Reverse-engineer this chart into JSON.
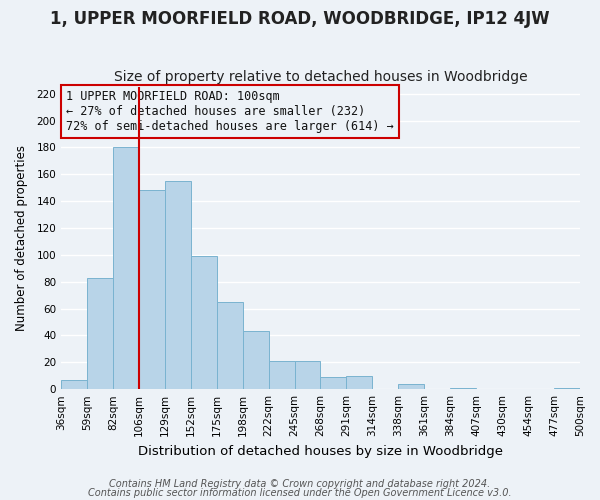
{
  "title": "1, UPPER MOORFIELD ROAD, WOODBRIDGE, IP12 4JW",
  "subtitle": "Size of property relative to detached houses in Woodbridge",
  "xlabel": "Distribution of detached houses by size in Woodbridge",
  "ylabel": "Number of detached properties",
  "bin_labels": [
    "36sqm",
    "59sqm",
    "82sqm",
    "106sqm",
    "129sqm",
    "152sqm",
    "175sqm",
    "198sqm",
    "222sqm",
    "245sqm",
    "268sqm",
    "291sqm",
    "314sqm",
    "338sqm",
    "361sqm",
    "384sqm",
    "407sqm",
    "430sqm",
    "454sqm",
    "477sqm",
    "500sqm"
  ],
  "bar_values": [
    7,
    83,
    180,
    148,
    155,
    99,
    65,
    43,
    21,
    21,
    9,
    10,
    0,
    4,
    0,
    1,
    0,
    0,
    0,
    1
  ],
  "bar_color": "#b8d4e8",
  "bar_edge_color": "#7ab3d0",
  "vline_x": 3,
  "vline_color": "#cc0000",
  "annotation_box_text": "1 UPPER MOORFIELD ROAD: 100sqm\n← 27% of detached houses are smaller (232)\n72% of semi-detached houses are larger (614) →",
  "box_edge_color": "#cc0000",
  "footnote1": "Contains HM Land Registry data © Crown copyright and database right 2024.",
  "footnote2": "Contains public sector information licensed under the Open Government Licence v3.0.",
  "ylim": [
    0,
    225
  ],
  "yticks": [
    0,
    20,
    40,
    60,
    80,
    100,
    120,
    140,
    160,
    180,
    200,
    220
  ],
  "background_color": "#edf2f7",
  "grid_color": "#ffffff",
  "title_fontsize": 12,
  "subtitle_fontsize": 10,
  "xlabel_fontsize": 9.5,
  "ylabel_fontsize": 8.5,
  "tick_fontsize": 7.5,
  "annotation_fontsize": 8.5,
  "footnote_fontsize": 7
}
